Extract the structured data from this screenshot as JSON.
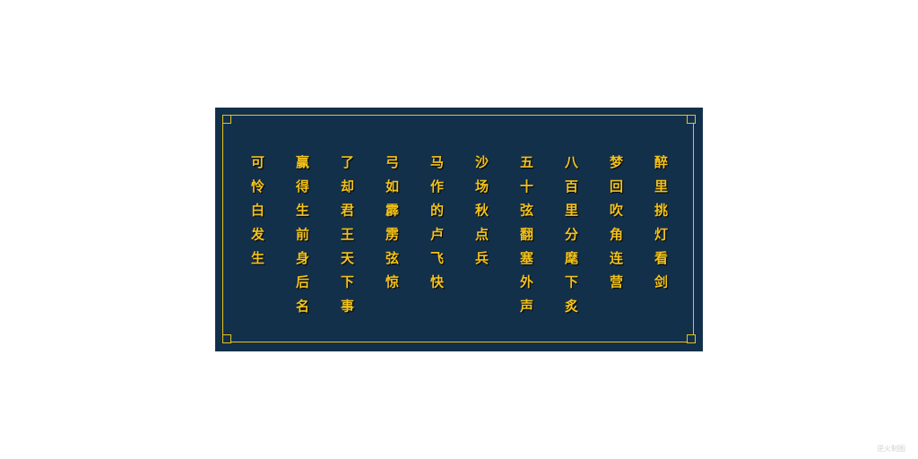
{
  "poem": {
    "lines": [
      "醉里挑灯看剑",
      "梦回吹角连营",
      "八百里分麾下炙",
      "五十弦翻塞外声",
      "沙场秋点兵",
      "马作的卢飞快",
      "弓如霹雳弦惊",
      "了却君王天下事",
      "赢得生前身后名",
      "可怜白发生"
    ]
  },
  "watermark": "逆火制图",
  "colors": {
    "background": "#13304b",
    "text": "#f2c21b",
    "frame": "#e8c21a"
  }
}
